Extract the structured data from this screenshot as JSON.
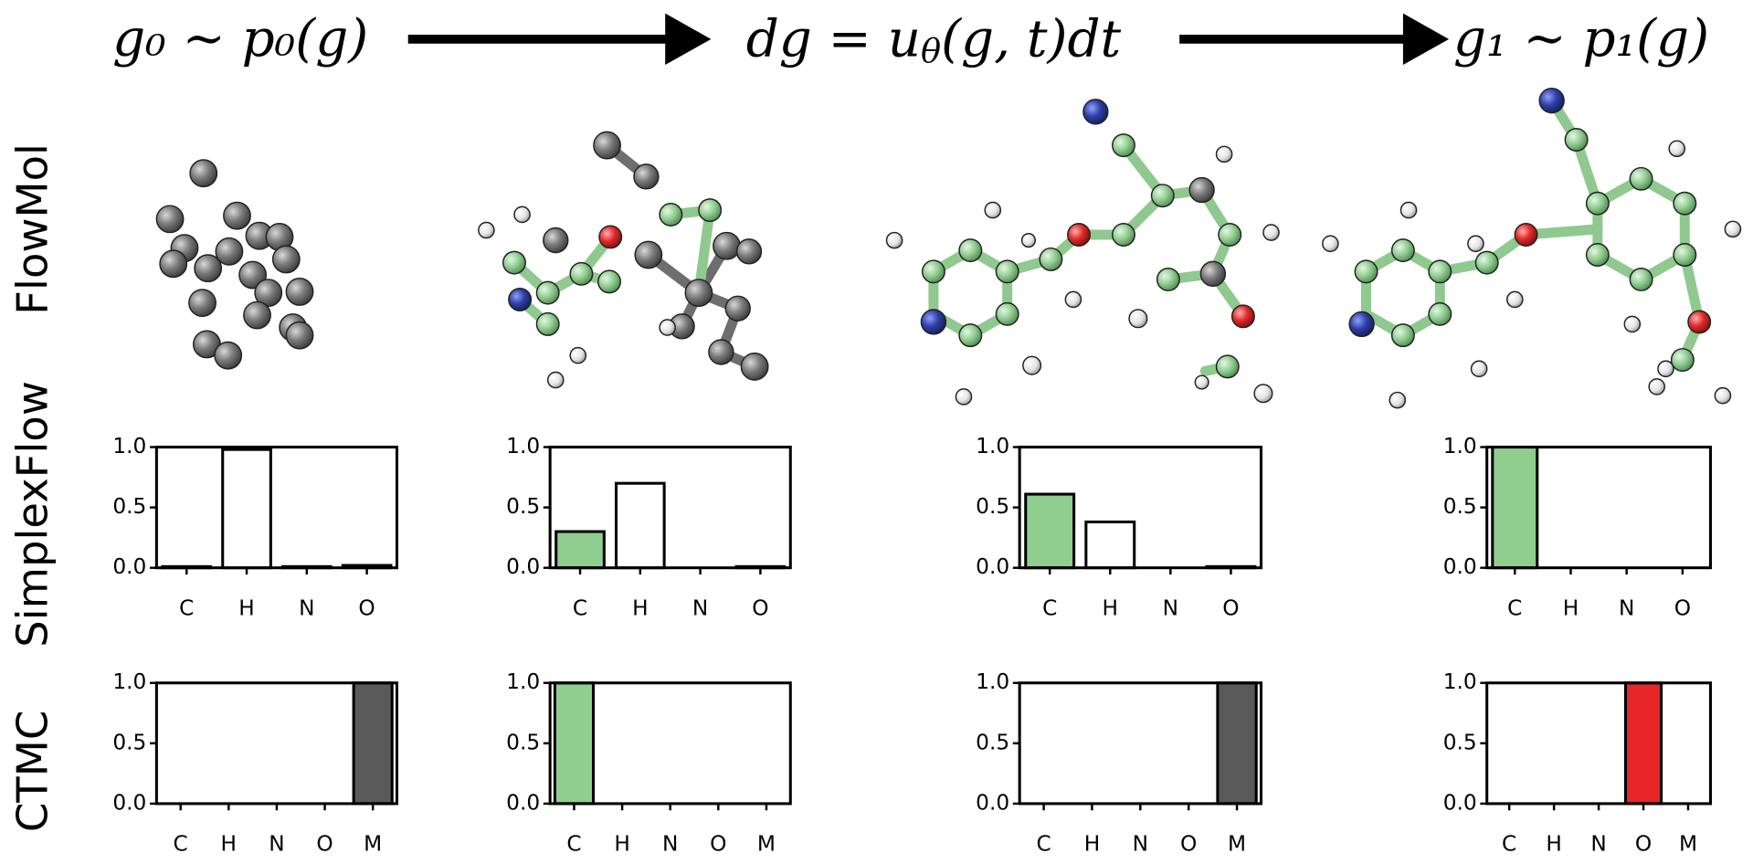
{
  "header": {
    "start": "g₀ ∼ p₀(g)",
    "flow": [
      "dg = u",
      "θ",
      "(g, t)dt"
    ],
    "end": "g₁ ∼ p₁(g)"
  },
  "row_labels": [
    "FlowMol",
    "SimplexFlow",
    "CTMC"
  ],
  "chart_data": [
    {
      "type": "bar",
      "categories": [
        "C",
        "H",
        "N",
        "O"
      ],
      "values": [
        0.01,
        0.98,
        0.01,
        0.02
      ],
      "colors": [
        "#ffffff",
        "#ffffff",
        "#ffffff",
        "#ffffff"
      ],
      "ylim": [
        0,
        1
      ],
      "yticks": [
        {
          "value": 0,
          "label": "0.0"
        },
        {
          "value": 0.5,
          "label": "0.5"
        },
        {
          "value": 1,
          "label": "1.0"
        }
      ]
    },
    {
      "type": "bar",
      "categories": [
        "C",
        "H",
        "N",
        "O"
      ],
      "values": [
        0.3,
        0.7,
        0,
        0.01
      ],
      "colors": [
        "#8fce8f",
        "#ffffff",
        "#ffffff",
        "#ffffff"
      ],
      "ylim": [
        0,
        1
      ],
      "yticks": [
        {
          "value": 0,
          "label": "0.0"
        },
        {
          "value": 0.5,
          "label": "0.5"
        },
        {
          "value": 1,
          "label": "1.0"
        }
      ]
    },
    {
      "type": "bar",
      "categories": [
        "C",
        "H",
        "N",
        "O"
      ],
      "values": [
        0.61,
        0.38,
        0,
        0.01
      ],
      "colors": [
        "#8fce8f",
        "#ffffff",
        "#ffffff",
        "#ffffff"
      ],
      "ylim": [
        0,
        1
      ],
      "yticks": [
        {
          "value": 0,
          "label": "0.0"
        },
        {
          "value": 0.5,
          "label": "0.5"
        },
        {
          "value": 1,
          "label": "1.0"
        }
      ]
    },
    {
      "type": "bar",
      "categories": [
        "C",
        "H",
        "N",
        "O"
      ],
      "values": [
        1,
        0,
        0,
        0
      ],
      "colors": [
        "#8fce8f",
        "#ffffff",
        "#ffffff",
        "#ffffff"
      ],
      "ylim": [
        0,
        1
      ],
      "yticks": [
        {
          "value": 0,
          "label": "0.0"
        },
        {
          "value": 0.5,
          "label": "0.5"
        },
        {
          "value": 1,
          "label": "1.0"
        }
      ]
    },
    {
      "type": "bar",
      "categories": [
        "C",
        "H",
        "N",
        "O",
        "M"
      ],
      "values": [
        0,
        0,
        0,
        0,
        1
      ],
      "colors": [
        "#ffffff",
        "#ffffff",
        "#ffffff",
        "#ffffff",
        "#5a5a5a"
      ],
      "ylim": [
        0,
        1
      ],
      "yticks": [
        {
          "value": 0,
          "label": "0.0"
        },
        {
          "value": 0.5,
          "label": "0.5"
        },
        {
          "value": 1,
          "label": "1.0"
        }
      ]
    },
    {
      "type": "bar",
      "categories": [
        "C",
        "H",
        "N",
        "O",
        "M"
      ],
      "values": [
        1,
        0,
        0,
        0,
        0
      ],
      "colors": [
        "#8fce8f",
        "#ffffff",
        "#ffffff",
        "#ffffff",
        "#ffffff"
      ],
      "ylim": [
        0,
        1
      ],
      "yticks": [
        {
          "value": 0,
          "label": "0.0"
        },
        {
          "value": 0.5,
          "label": "0.5"
        },
        {
          "value": 1,
          "label": "1.0"
        }
      ]
    },
    {
      "type": "bar",
      "categories": [
        "C",
        "H",
        "N",
        "O",
        "M"
      ],
      "values": [
        0,
        0,
        0,
        0,
        1
      ],
      "colors": [
        "#ffffff",
        "#ffffff",
        "#ffffff",
        "#ffffff",
        "#5a5a5a"
      ],
      "ylim": [
        0,
        1
      ],
      "yticks": [
        {
          "value": 0,
          "label": "0.0"
        },
        {
          "value": 0.5,
          "label": "0.5"
        },
        {
          "value": 1,
          "label": "1.0"
        }
      ]
    },
    {
      "type": "bar",
      "categories": [
        "C",
        "H",
        "N",
        "O",
        "M"
      ],
      "values": [
        0,
        0,
        0,
        1,
        0
      ],
      "colors": [
        "#ffffff",
        "#ffffff",
        "#ffffff",
        "#e8262a",
        "#ffffff"
      ],
      "ylim": [
        0,
        1
      ],
      "yticks": [
        {
          "value": 0,
          "label": "0.0"
        },
        {
          "value": 0.5,
          "label": "0.5"
        },
        {
          "value": 1,
          "label": "1.0"
        }
      ]
    }
  ]
}
